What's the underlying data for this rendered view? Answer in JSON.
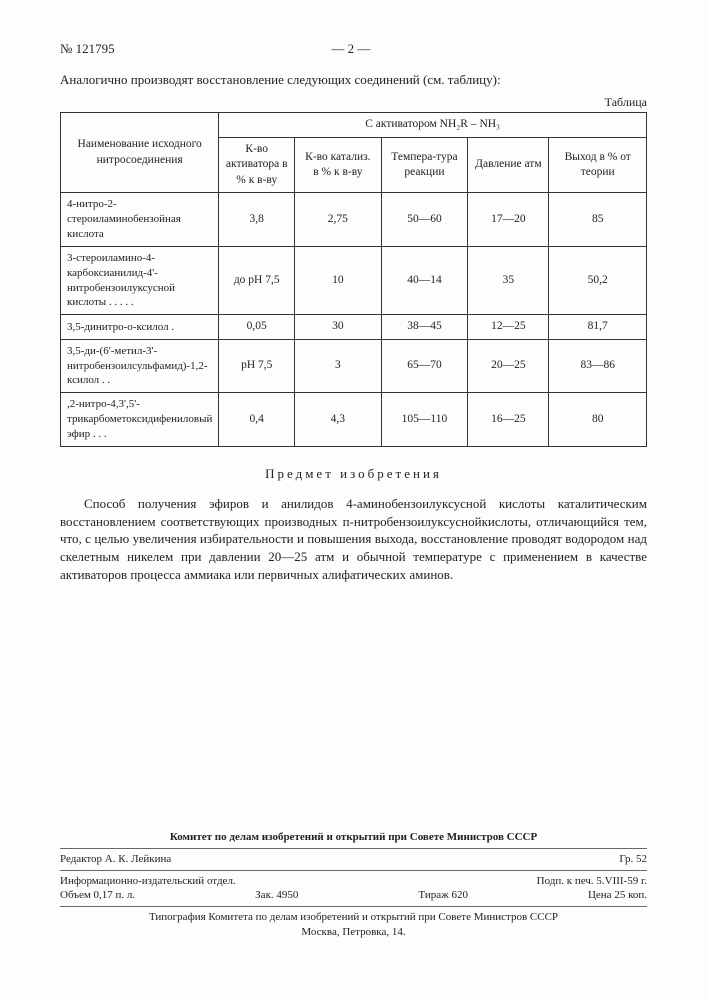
{
  "header": {
    "doc_no": "№ 121795",
    "page": "— 2 —"
  },
  "intro": "Аналогично производят восстановление следующих соединений (см. таблицу):",
  "table_label": "Таблица",
  "table": {
    "col_widths": [
      "26%",
      "13%",
      "15%",
      "15%",
      "14%",
      "17%"
    ],
    "head": {
      "rowhead": "Наименование исходного нитросоединения",
      "group": "С активатором NH₂R – NH₃",
      "cols": [
        "К-во активатора в % к в-ву",
        "К-во катализ. в % к в-ву",
        "Темпера-тура реакции",
        "Давление атм",
        "Выход в % от теории"
      ]
    },
    "rows": [
      {
        "label": "4-нитро-2-стероиламинобензойная кислота",
        "c": [
          "3,8",
          "2,75",
          "50—60",
          "17—20",
          "85"
        ]
      },
      {
        "label": "3-стероиламино-4-карбоксианилид-4'-нитробензоилуксусной кислоты . . . . .",
        "c": [
          "до pH 7,5",
          "10",
          "40—14",
          "35",
          "50,2"
        ]
      },
      {
        "label": "3,5-динитро-о-ксилол .",
        "c": [
          "0,05",
          "30",
          "38—45",
          "12—25",
          "81,7"
        ]
      },
      {
        "label": "3,5-ди-(6'-метил-3'-нитробензоилсульфамид)-1,2-ксилол . .",
        "c": [
          "pH 7,5",
          "3",
          "65—70",
          "20—25",
          "83—86"
        ]
      },
      {
        "label": ",2-нитро-4,3',5'-трикарбометоксидифениловый эфир . . .",
        "c": [
          "0,4",
          "4,3",
          "105—110",
          "16—25",
          "80"
        ]
      }
    ]
  },
  "section_title": "Предмет изобретения",
  "body": "Способ получения эфиров и анилидов 4-аминобензоилуксусной кислоты каталитическим восстановлением соответствующих производных п-нитробензоилуксуснойкислоты, отличающийся тем, что, с целью увеличения избирательности и повышения выхода, восстановление проводят водородом над скелетным никелем при давлении 20—25 атм и обычной температуре с применением в качестве активаторов процесса аммиака или первичных алифатических аминов.",
  "footer": {
    "committee": "Комитет по делам изобретений и открытий при Совете Министров СССР",
    "editor_l": "Редактор А. К. Лейкина",
    "editor_r": "Гр. 52",
    "info_l": "Информационно-издательский отдел.",
    "info_r": "Подп. к печ. 5.VIII-59 г.",
    "vol_l": "Объем 0,17 п. л.",
    "vol_m1": "Зак. 4950",
    "vol_m2": "Тираж 620",
    "vol_r": "Цена 25 коп.",
    "typo1": "Типография Комитета по делам изобретений и открытий при Совете Министров СССР",
    "typo2": "Москва, Петровка, 14."
  }
}
